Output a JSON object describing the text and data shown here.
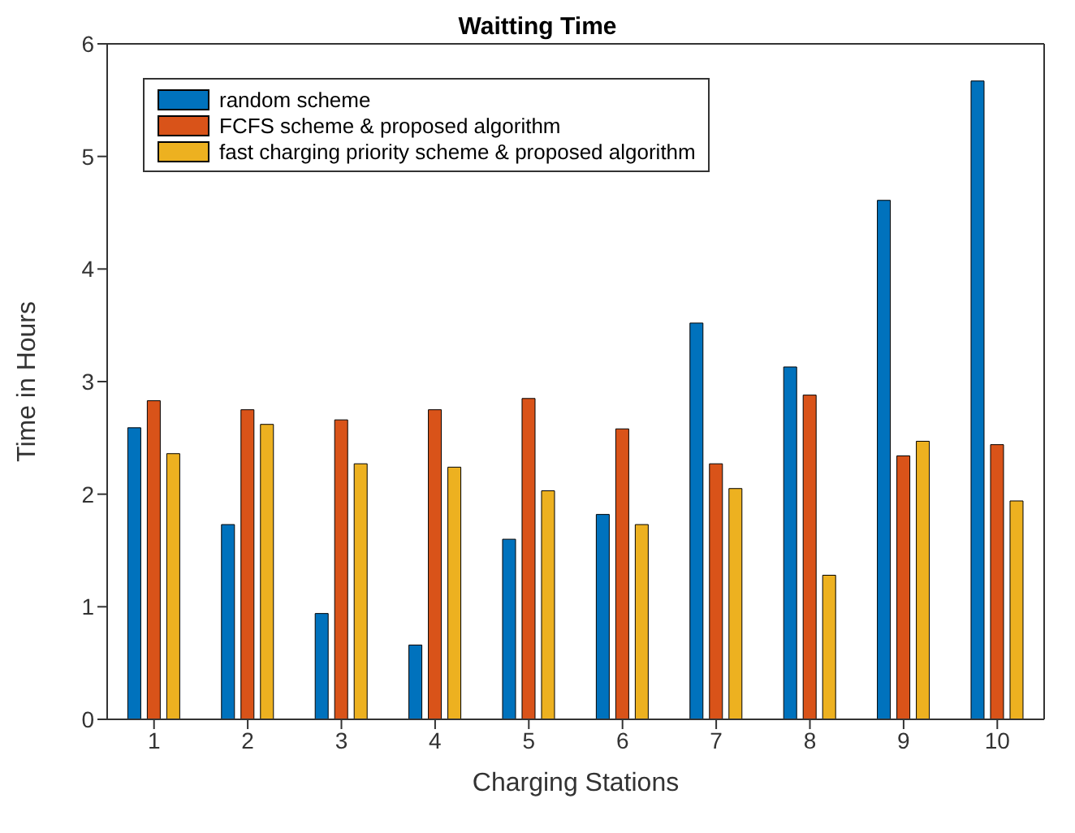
{
  "chart_data": {
    "type": "bar",
    "title": "Waitting Time",
    "xlabel": "Charging Stations",
    "ylabel": "Time in Hours",
    "categories": [
      "1",
      "2",
      "3",
      "4",
      "5",
      "6",
      "7",
      "8",
      "9",
      "10"
    ],
    "series": [
      {
        "name": "random scheme",
        "color": "#0072bd",
        "values": [
          2.59,
          1.73,
          0.94,
          0.66,
          1.6,
          1.82,
          3.52,
          3.13,
          4.61,
          5.67
        ]
      },
      {
        "name": "FCFS scheme & proposed algorithm",
        "color": "#d95319",
        "values": [
          2.83,
          2.75,
          2.66,
          2.75,
          2.85,
          2.58,
          2.27,
          2.88,
          2.34,
          2.44
        ]
      },
      {
        "name": "fast charging priority scheme & proposed algorithm",
        "color": "#edb120",
        "values": [
          2.36,
          2.62,
          2.27,
          2.24,
          2.03,
          1.73,
          2.05,
          1.28,
          2.47,
          1.94
        ]
      }
    ],
    "ylim": [
      0,
      6
    ],
    "yticks": [
      0,
      1,
      2,
      3,
      4,
      5,
      6
    ],
    "grid": false,
    "legend": "top left"
  }
}
